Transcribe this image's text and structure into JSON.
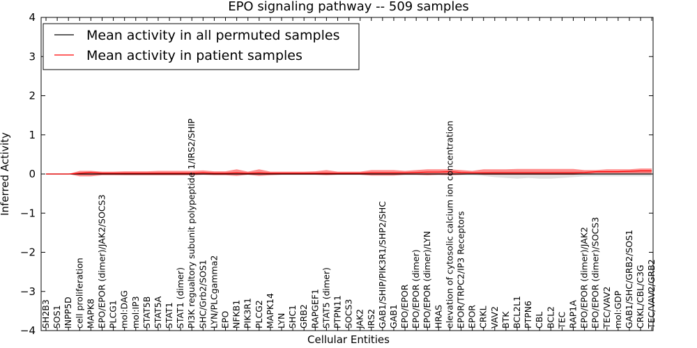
{
  "chart_data": {
    "type": "line",
    "title": "EPO signaling pathway -- 509 samples",
    "xlabel": "Cellular Entities",
    "ylabel": "Inferred Activity",
    "ylim": [
      -4,
      4
    ],
    "yticks": [
      -4,
      -3,
      -2,
      -1,
      0,
      1,
      2,
      3,
      4
    ],
    "ytick_labels": [
      "−4",
      "−3",
      "−2",
      "−1",
      "0",
      "1",
      "2",
      "3",
      "4"
    ],
    "legend_position": "top-left",
    "categories": [
      "SH2B3",
      "SOS1",
      "INPP5D",
      "cell proliferation",
      "MAPK8",
      "EPO/EPOR (dimer)/JAK2/SOCS3",
      "PLCG1",
      "mol:DAG",
      "mol:IP3",
      "STAT5B",
      "STAT5A",
      "STAT1",
      "STAT1 (dimer)",
      "PI3K regualtory subunit polypeptide 1/IRS2/SHIP",
      "SHC/Grb2/SOS1",
      "LYN/PLCgamma2",
      "EPO",
      "NFKB1",
      "PIK3R1",
      "PLCG2",
      "MAPK14",
      "LYN",
      "SHC1",
      "GRB2",
      "RAPGEF1",
      "STAT5 (dimer)",
      "PTPN11",
      "SOCS3",
      "JAK2",
      "IRS2",
      "GAB1/SHIP/PIK3R1/SHP2/SHC",
      "GAB1",
      "EPO/EPOR",
      "EPO/EPOR (dimer)",
      "EPO/EPOR (dimer)/LYN",
      "HRAS",
      "elevation of cytosolic calcium ion concentration",
      "EPOR/TRPC2/IP3 Receptors",
      "EPOR",
      "CRKL",
      "VAV2",
      "BTK",
      "BCL2L1",
      "PTPN6",
      "CBL",
      "BCL2",
      "TEC",
      "RAP1A",
      "EPO/EPOR (dimer)/JAK2",
      "EPO/EPOR (dimer)/SOCS3",
      "TEC/VAV2",
      "mol:GDP",
      "GAB1/SHC/GRB2/SOS1",
      "CRKL/CBL/C3G",
      "TEC/VAV2/GRB2"
    ],
    "series": [
      {
        "name": "Mean activity in all permuted samples",
        "color": "#000000",
        "values": [
          0,
          0,
          0,
          0,
          0,
          0,
          0,
          0,
          0,
          0,
          0,
          0,
          0,
          0,
          0,
          0,
          0,
          0,
          0,
          0,
          0,
          0,
          0,
          0,
          0,
          0,
          0,
          0,
          0,
          0,
          0,
          0,
          0,
          0,
          0,
          0,
          0,
          0,
          0,
          0,
          0,
          0,
          0,
          0,
          0,
          0,
          0,
          0,
          0,
          0,
          0,
          0,
          0,
          0,
          0
        ],
        "band_lower": [
          0,
          0,
          0,
          -0.02,
          -0.03,
          -0.02,
          -0.02,
          -0.03,
          -0.03,
          -0.03,
          -0.03,
          -0.03,
          -0.03,
          -0.03,
          -0.02,
          -0.02,
          -0.02,
          -0.02,
          -0.02,
          -0.02,
          -0.02,
          -0.02,
          -0.02,
          -0.02,
          -0.02,
          -0.02,
          -0.02,
          -0.02,
          -0.02,
          -0.03,
          -0.03,
          -0.03,
          -0.03,
          -0.03,
          -0.03,
          -0.03,
          -0.03,
          -0.03,
          -0.03,
          -0.05,
          -0.08,
          -0.1,
          -0.12,
          -0.1,
          -0.12,
          -0.12,
          -0.1,
          -0.08,
          -0.06,
          -0.06,
          -0.06,
          -0.06,
          -0.06,
          -0.06,
          -0.06
        ],
        "band_upper": [
          0,
          0,
          0,
          0.02,
          0.03,
          0.02,
          0.02,
          0.03,
          0.03,
          0.03,
          0.03,
          0.03,
          0.03,
          0.03,
          0.02,
          0.02,
          0.02,
          0.02,
          0.02,
          0.02,
          0.02,
          0.02,
          0.02,
          0.02,
          0.02,
          0.02,
          0.02,
          0.02,
          0.02,
          0.03,
          0.03,
          0.03,
          0.03,
          0.03,
          0.03,
          0.03,
          0.03,
          0.03,
          0.03,
          0.05,
          0.06,
          0.06,
          0.06,
          0.06,
          0.06,
          0.06,
          0.06,
          0.06,
          0.06,
          0.06,
          0.06,
          0.06,
          0.06,
          0.06,
          0.06
        ]
      },
      {
        "name": "Mean activity in patient samples",
        "color": "#ff0000",
        "values": [
          0,
          0,
          0,
          0.02,
          0.04,
          0.02,
          0.02,
          0.02,
          0.02,
          0.02,
          0.02,
          0.02,
          0.02,
          0.02,
          0.03,
          0.02,
          0.02,
          0.03,
          0.02,
          0.03,
          0.02,
          0.02,
          0.02,
          0.02,
          0.02,
          0.02,
          0.02,
          0.02,
          0.02,
          0.03,
          0.03,
          0.03,
          0.03,
          0.04,
          0.05,
          0.05,
          0.06,
          0.04,
          0.03,
          0.03,
          0.03,
          0.03,
          0.03,
          0.03,
          0.03,
          0.03,
          0.03,
          0.03,
          0.04,
          0.06,
          0.06,
          0.06,
          0.07,
          0.08,
          0.08
        ],
        "band_lower": [
          0,
          0,
          0,
          -0.06,
          -0.06,
          -0.03,
          -0.03,
          -0.03,
          -0.03,
          -0.03,
          -0.03,
          -0.03,
          -0.03,
          -0.03,
          -0.02,
          -0.03,
          -0.03,
          -0.05,
          -0.02,
          -0.05,
          -0.03,
          -0.02,
          -0.02,
          -0.02,
          -0.02,
          -0.03,
          -0.02,
          -0.02,
          -0.02,
          -0.04,
          -0.04,
          -0.04,
          -0.02,
          -0.02,
          -0.03,
          -0.02,
          -0.03,
          -0.02,
          0,
          -0.02,
          -0.02,
          -0.02,
          -0.02,
          -0.02,
          -0.02,
          -0.02,
          -0.02,
          -0.02,
          0,
          0.02,
          0.02,
          0.02,
          0.02,
          0.02,
          0.02
        ],
        "band_upper": [
          0,
          0,
          0,
          0.08,
          0.08,
          0.06,
          0.06,
          0.07,
          0.07,
          0.07,
          0.08,
          0.08,
          0.08,
          0.08,
          0.09,
          0.07,
          0.07,
          0.12,
          0.06,
          0.12,
          0.06,
          0.06,
          0.06,
          0.06,
          0.07,
          0.1,
          0.06,
          0.06,
          0.06,
          0.1,
          0.1,
          0.1,
          0.08,
          0.1,
          0.12,
          0.12,
          0.12,
          0.1,
          0.08,
          0.12,
          0.12,
          0.12,
          0.13,
          0.13,
          0.13,
          0.13,
          0.13,
          0.13,
          0.1,
          0.1,
          0.12,
          0.12,
          0.12,
          0.14,
          0.14
        ]
      }
    ]
  }
}
